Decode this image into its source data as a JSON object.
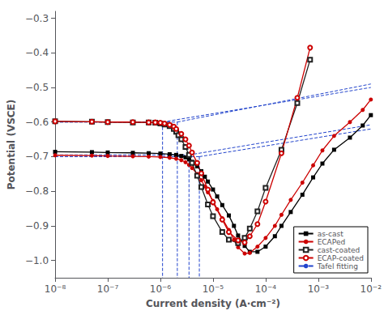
{
  "chart_data": {
    "type": "line",
    "xlabel": "Current density (A·cm⁻²)",
    "ylabel": "Potential (VSCE)",
    "log": "x",
    "grid": false,
    "legend": "lower right",
    "xlim": [
      1e-08,
      0.01
    ],
    "xticks": [
      {
        "value": 1e-08,
        "label": "10⁻⁸"
      },
      {
        "value": 1e-07,
        "label": "10⁻⁷"
      },
      {
        "value": 1e-06,
        "label": "10⁻⁶"
      },
      {
        "value": 1e-05,
        "label": "10⁻⁵"
      },
      {
        "value": 0.0001,
        "label": "10⁻⁴"
      },
      {
        "value": 0.001,
        "label": "10⁻³"
      },
      {
        "value": 0.01,
        "label": "10⁻²"
      }
    ],
    "ylim": [
      -1.05,
      -0.28
    ],
    "yticks": [
      {
        "value": -1.0,
        "label": "−1.0"
      },
      {
        "value": -0.9,
        "label": "−0.9"
      },
      {
        "value": -0.8,
        "label": "−0.8"
      },
      {
        "value": -0.7,
        "label": "−0.7"
      },
      {
        "value": -0.6,
        "label": "−0.6"
      },
      {
        "value": -0.5,
        "label": "−0.5"
      },
      {
        "value": -0.4,
        "label": "−0.4"
      },
      {
        "value": -0.3,
        "label": "−0.3"
      }
    ],
    "series": [
      {
        "name": "as-cast",
        "color": "#000000",
        "marker": "square",
        "x": [
          1e-08,
          5e-08,
          1e-07,
          3e-07,
          6e-07,
          1e-06,
          1.5e-06,
          2e-06,
          2.5e-06,
          3e-06,
          3.5e-06,
          4e-06,
          5e-06,
          6e-06,
          7e-06,
          8e-06,
          1e-05,
          1.2e-05,
          1.5e-05,
          2e-05,
          2.5e-05,
          3e-05,
          4e-05,
          5e-05,
          7e-05,
          0.0001,
          0.00015,
          0.0002,
          0.0003,
          0.0005,
          0.0008,
          0.0012,
          0.002,
          0.004,
          0.007,
          0.01
        ],
        "values": [
          -0.686,
          -0.687,
          -0.688,
          -0.689,
          -0.69,
          -0.691,
          -0.693,
          -0.695,
          -0.698,
          -0.702,
          -0.708,
          -0.715,
          -0.728,
          -0.742,
          -0.758,
          -0.772,
          -0.795,
          -0.815,
          -0.84,
          -0.87,
          -0.9,
          -0.928,
          -0.958,
          -0.975,
          -0.975,
          -0.96,
          -0.93,
          -0.9,
          -0.86,
          -0.81,
          -0.76,
          -0.72,
          -0.68,
          -0.645,
          -0.61,
          -0.58
        ]
      },
      {
        "name": "ECAPed",
        "color": "#cc0000",
        "marker": "circle",
        "x": [
          1e-08,
          5e-08,
          1e-07,
          3e-07,
          6e-07,
          1e-06,
          1.5e-06,
          2e-06,
          2.5e-06,
          3e-06,
          3.5e-06,
          4e-06,
          5e-06,
          6e-06,
          7e-06,
          8e-06,
          1e-05,
          1.2e-05,
          1.5e-05,
          2e-05,
          2.5e-05,
          3e-05,
          4e-05,
          5e-05,
          7e-05,
          0.0001,
          0.00015,
          0.0002,
          0.0003,
          0.0005,
          0.0008,
          0.0012,
          0.002,
          0.004,
          0.007,
          0.01
        ],
        "values": [
          -0.696,
          -0.697,
          -0.698,
          -0.699,
          -0.7,
          -0.701,
          -0.703,
          -0.706,
          -0.71,
          -0.716,
          -0.724,
          -0.733,
          -0.75,
          -0.768,
          -0.786,
          -0.803,
          -0.828,
          -0.852,
          -0.878,
          -0.912,
          -0.94,
          -0.962,
          -0.98,
          -0.978,
          -0.96,
          -0.935,
          -0.9,
          -0.868,
          -0.825,
          -0.775,
          -0.725,
          -0.682,
          -0.64,
          -0.6,
          -0.565,
          -0.535
        ]
      },
      {
        "name": "cast-coated",
        "color": "#222222",
        "marker": "open_square",
        "x": [
          1e-08,
          5e-08,
          1e-07,
          3e-07,
          6e-07,
          8e-07,
          1e-06,
          1.2e-06,
          1.5e-06,
          1.8e-06,
          2e-06,
          2.2e-06,
          2.5e-06,
          3e-06,
          3.5e-06,
          4e-06,
          5e-06,
          6e-06,
          8e-06,
          1e-05,
          1.5e-05,
          2e-05,
          3e-05,
          4e-05,
          5e-05,
          7e-05,
          0.0001,
          0.0002,
          0.0004,
          0.0007
        ],
        "values": [
          -0.598,
          -0.599,
          -0.6,
          -0.601,
          -0.601,
          -0.602,
          -0.604,
          -0.607,
          -0.612,
          -0.62,
          -0.628,
          -0.638,
          -0.65,
          -0.672,
          -0.695,
          -0.718,
          -0.755,
          -0.788,
          -0.838,
          -0.872,
          -0.918,
          -0.94,
          -0.95,
          -0.935,
          -0.908,
          -0.858,
          -0.79,
          -0.68,
          -0.545,
          -0.42
        ]
      },
      {
        "name": "ECAP-coated",
        "color": "#cc0000",
        "marker": "open_circle",
        "x": [
          1e-08,
          5e-08,
          1e-07,
          3e-07,
          6e-07,
          8e-07,
          1e-06,
          1.2e-06,
          1.5e-06,
          1.8e-06,
          2e-06,
          2.5e-06,
          3e-06,
          3.5e-06,
          4e-06,
          5e-06,
          6e-06,
          8e-06,
          1e-05,
          1.5e-05,
          2e-05,
          3e-05,
          4e-05,
          5e-05,
          7e-05,
          0.0001,
          0.0002,
          0.0004,
          0.0007
        ],
        "values": [
          -0.598,
          -0.599,
          -0.6,
          -0.6,
          -0.601,
          -0.601,
          -0.602,
          -0.604,
          -0.608,
          -0.613,
          -0.62,
          -0.634,
          -0.65,
          -0.668,
          -0.688,
          -0.718,
          -0.748,
          -0.795,
          -0.832,
          -0.882,
          -0.918,
          -0.942,
          -0.948,
          -0.93,
          -0.895,
          -0.83,
          -0.69,
          -0.53,
          -0.385
        ]
      },
      {
        "name": "Tafel fitting",
        "color": "#2244cc",
        "line_style": "dashed",
        "segments": [
          {
            "x": [
              1e-08,
              1.1e-06
            ],
            "y": [
              -0.6,
              -0.6
            ]
          },
          {
            "x": [
              1.1e-06,
              1.1e-06
            ],
            "y": [
              -0.6,
              -1.05
            ]
          },
          {
            "x": [
              1.1e-06,
              0.01
            ],
            "y": [
              -0.6,
              -0.5
            ]
          },
          {
            "x": [
              1e-08,
              2.1e-06
            ],
            "y": [
              -0.6,
              -0.6
            ]
          },
          {
            "x": [
              2.1e-06,
              2.1e-06
            ],
            "y": [
              -0.6,
              -1.05
            ]
          },
          {
            "x": [
              2.1e-06,
              0.01
            ],
            "y": [
              -0.6,
              -0.49
            ]
          },
          {
            "x": [
              1e-08,
              3.5e-06
            ],
            "y": [
              -0.695,
              -0.695
            ]
          },
          {
            "x": [
              3.5e-06,
              3.5e-06
            ],
            "y": [
              -0.695,
              -1.05
            ]
          },
          {
            "x": [
              3.5e-06,
              0.01
            ],
            "y": [
              -0.695,
              -0.608
            ]
          },
          {
            "x": [
              1e-08,
              5.5e-06
            ],
            "y": [
              -0.7,
              -0.7
            ]
          },
          {
            "x": [
              5.5e-06,
              5.5e-06
            ],
            "y": [
              -0.7,
              -1.05
            ]
          },
          {
            "x": [
              5.5e-06,
              0.01
            ],
            "y": [
              -0.7,
              -0.62
            ]
          }
        ]
      }
    ]
  }
}
